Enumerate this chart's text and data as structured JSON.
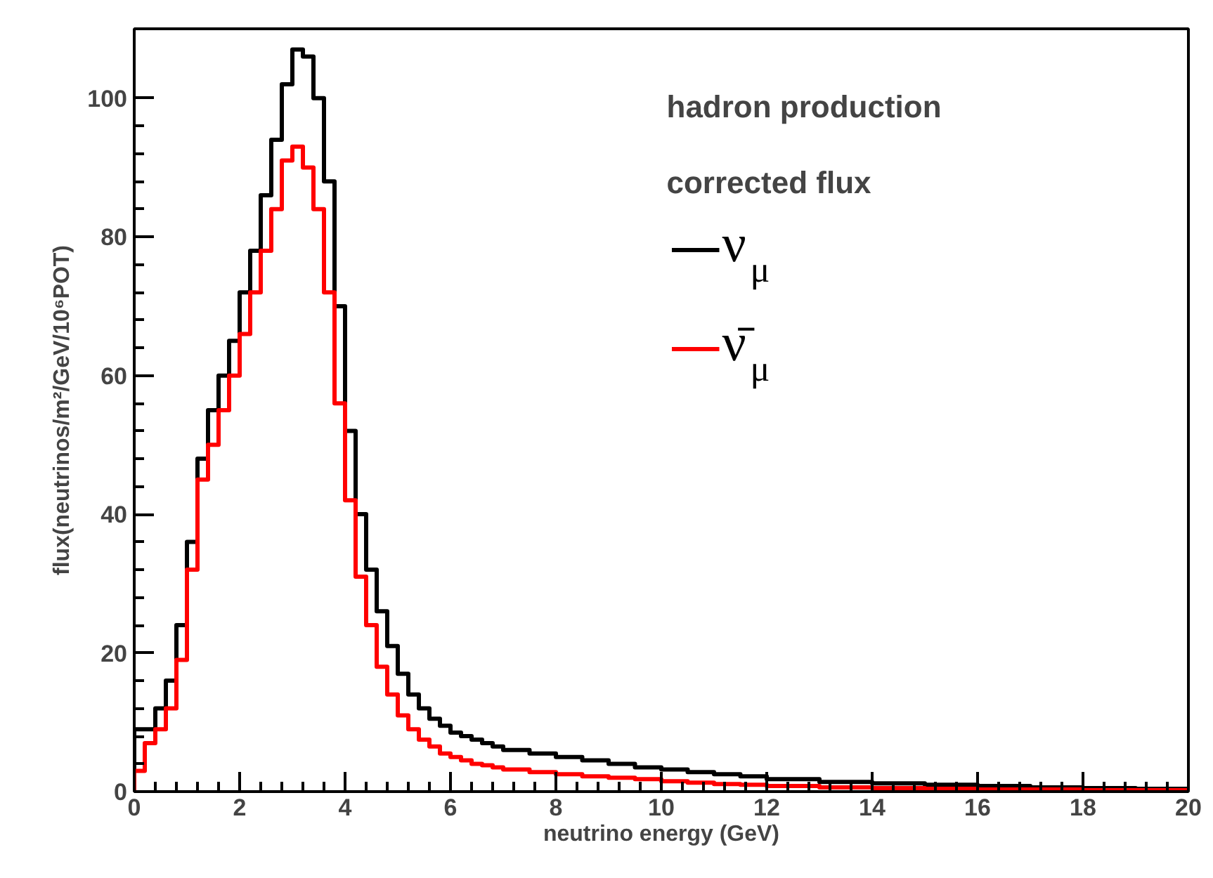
{
  "chart_data": {
    "type": "histogram",
    "xlabel": "neutrino energy (GeV)",
    "ylabel": "flux(neutrinos/m²/GeV/10⁶POT)",
    "annotations": [
      "hadron production",
      "corrected flux"
    ],
    "bins": [
      0,
      0.2,
      0.4,
      0.6,
      0.8,
      1.0,
      1.2,
      1.4,
      1.6,
      1.8,
      2.0,
      2.2,
      2.4,
      2.6,
      2.8,
      3.0,
      3.2,
      3.4,
      3.6,
      3.8,
      4.0,
      4.2,
      4.4,
      4.6,
      4.8,
      5.0,
      5.2,
      5.4,
      5.6,
      5.8,
      6.0,
      6.2,
      6.4,
      6.6,
      6.8,
      7.0,
      7.5,
      8.0,
      8.5,
      9.0,
      9.5,
      10.0,
      10.5,
      11.0,
      11.5,
      12,
      13,
      14,
      15,
      16,
      17,
      18,
      19,
      20
    ],
    "series": [
      {
        "name": "ν$_{μ}$",
        "color": "#000000",
        "values": [
          9,
          9,
          12,
          16,
          24,
          36,
          48,
          55,
          60,
          65,
          72,
          78,
          86,
          94,
          102,
          107,
          106,
          100,
          88,
          70,
          52,
          40,
          32,
          26,
          21,
          17,
          14,
          12,
          10.5,
          9.5,
          8.5,
          8,
          7.5,
          7,
          6.5,
          6,
          5.5,
          5,
          4.5,
          4,
          3.5,
          3.2,
          2.8,
          2.5,
          2.2,
          1.8,
          1.4,
          1.2,
          1.0,
          0.8,
          0.6,
          0.5,
          0.4
        ]
      },
      {
        "name": "ν̄$_{μ}$",
        "color": "#ff0000",
        "values": [
          3,
          7,
          9,
          12,
          19,
          32,
          45,
          50,
          55,
          60,
          66,
          72,
          78,
          84,
          91,
          93,
          90,
          84,
          72,
          56,
          42,
          31,
          24,
          18,
          14,
          11,
          9,
          7.5,
          6.5,
          5.5,
          5,
          4.5,
          4,
          3.8,
          3.5,
          3.2,
          2.8,
          2.5,
          2.2,
          2,
          1.8,
          1.5,
          1.3,
          1.1,
          1,
          0.8,
          0.6,
          0.5,
          0.4,
          0.3,
          0.3,
          0.2,
          0.2
        ]
      }
    ],
    "xlim": [
      0,
      20
    ],
    "ylim": [
      0,
      110
    ],
    "xticks": [
      0,
      2,
      4,
      6,
      8,
      10,
      12,
      14,
      16,
      18,
      20
    ],
    "yticks": [
      0,
      20,
      40,
      60,
      80,
      100
    ],
    "grid": false,
    "legend": "top right"
  }
}
